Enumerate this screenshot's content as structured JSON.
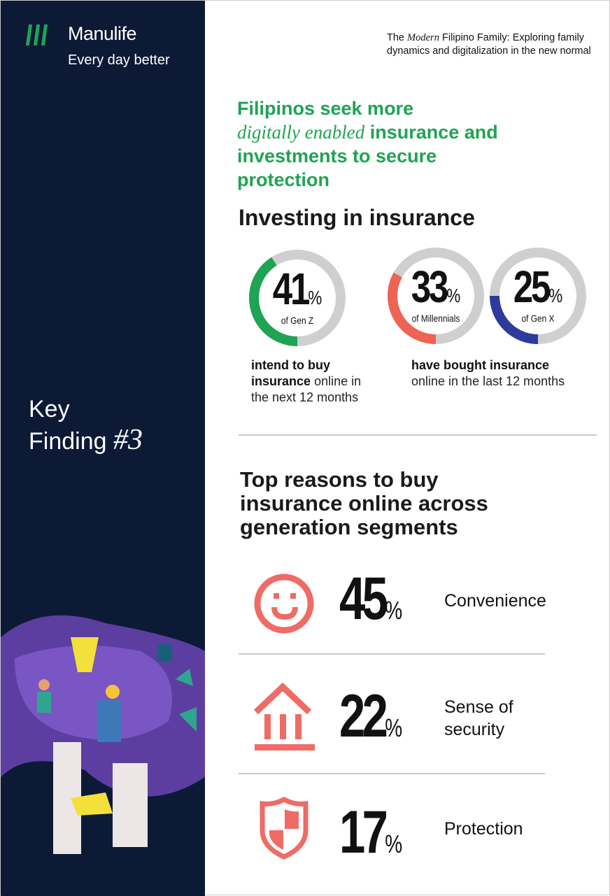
{
  "brand": {
    "name": "Manulife",
    "tagline": "Every day better"
  },
  "sidebar": {
    "key_finding_label": "Key",
    "key_finding_word": "Finding",
    "key_finding_number": "#3"
  },
  "subtitle": {
    "pre": "The",
    "italic": "Modern",
    "post": "Filipino Family: Exploring family dynamics and digitalization in the new normal"
  },
  "headline": {
    "line1": "Filipinos seek more",
    "italic": "digitally enabled",
    "rest": "insurance and investments to secure protection"
  },
  "investing": {
    "title": "Investing in insurance",
    "donuts": [
      {
        "value": 41,
        "label": "of Gen Z",
        "color": "#1fa354"
      },
      {
        "value": 33,
        "label": "of Millennials",
        "color": "#ee6352"
      },
      {
        "value": 25,
        "label": "of Gen X",
        "color": "#2e3a9c"
      }
    ],
    "track_color": "#cfcfcf",
    "percent_sign": "%",
    "caption_left": {
      "bold": "intend to buy insurance",
      "rest": "online in the next 12 months"
    },
    "caption_right": {
      "bold": "have bought insurance",
      "rest": "online in the last 12 months"
    }
  },
  "reasons": {
    "title": "Top reasons to buy insurance online across generation segments",
    "icon_color": "#ef6b66",
    "items": [
      {
        "icon": "smiley-icon",
        "value": "45",
        "label": "Convenience"
      },
      {
        "icon": "bank-icon",
        "value": "22",
        "label": "Sense of security"
      },
      {
        "icon": "shield-icon",
        "value": "17",
        "label": "Protection"
      }
    ]
  }
}
